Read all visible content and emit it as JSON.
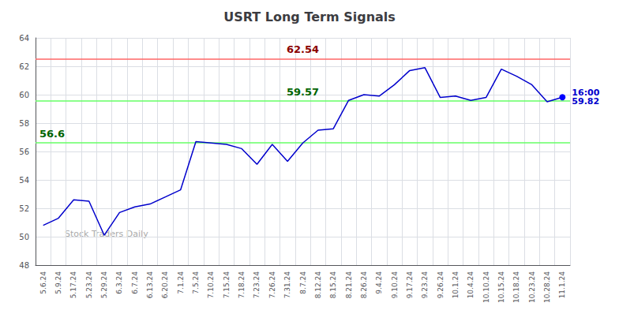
{
  "chart_data": {
    "type": "line",
    "title": "USRT Long Term Signals",
    "categories": [
      "5.6.24",
      "5.9.24",
      "5.17.24",
      "5.23.24",
      "5.29.24",
      "6.3.24",
      "6.7.24",
      "6.13.24",
      "6.20.24",
      "7.1.24",
      "7.5.24",
      "7.10.24",
      "7.15.24",
      "7.18.24",
      "7.23.24",
      "7.26.24",
      "7.31.24",
      "8.7.24",
      "8.12.24",
      "8.15.24",
      "8.21.24",
      "8.26.24",
      "9.4.24",
      "9.10.24",
      "9.17.24",
      "9.23.24",
      "9.26.24",
      "10.1.24",
      "10.4.24",
      "10.10.24",
      "10.15.24",
      "10.18.24",
      "10.23.24",
      "10.28.24",
      "11.1.24"
    ],
    "values": [
      50.8,
      51.3,
      52.6,
      52.5,
      50.1,
      51.7,
      52.1,
      52.3,
      52.8,
      53.3,
      56.7,
      56.6,
      56.5,
      56.2,
      55.1,
      56.5,
      55.3,
      56.6,
      57.5,
      57.6,
      59.6,
      60.0,
      59.9,
      60.7,
      61.7,
      61.9,
      59.8,
      59.9,
      59.6,
      59.8,
      61.8,
      61.3,
      60.7,
      59.5,
      59.82
    ],
    "color": "#0000cc",
    "last_dot_color": "#0000ff",
    "last_label": "16:00\n59.82",
    "hlines": [
      {
        "value": 62.54,
        "label": "62.54",
        "color": "#ff6666",
        "label_color": "darkred"
      },
      {
        "value": 59.57,
        "label": "59.57",
        "color": "#66ff66",
        "label_color": "darkgreen"
      },
      {
        "value": 56.6,
        "label": "56.6",
        "color": "#66ff66",
        "label_color": "darkgreen"
      }
    ],
    "watermark": "Stock Traders Daily",
    "watermark_color": "#aaaaaa",
    "ylim": [
      48,
      64
    ],
    "yticks": [
      48,
      50,
      52,
      54,
      56,
      58,
      60,
      62,
      64
    ],
    "grid": true
  }
}
